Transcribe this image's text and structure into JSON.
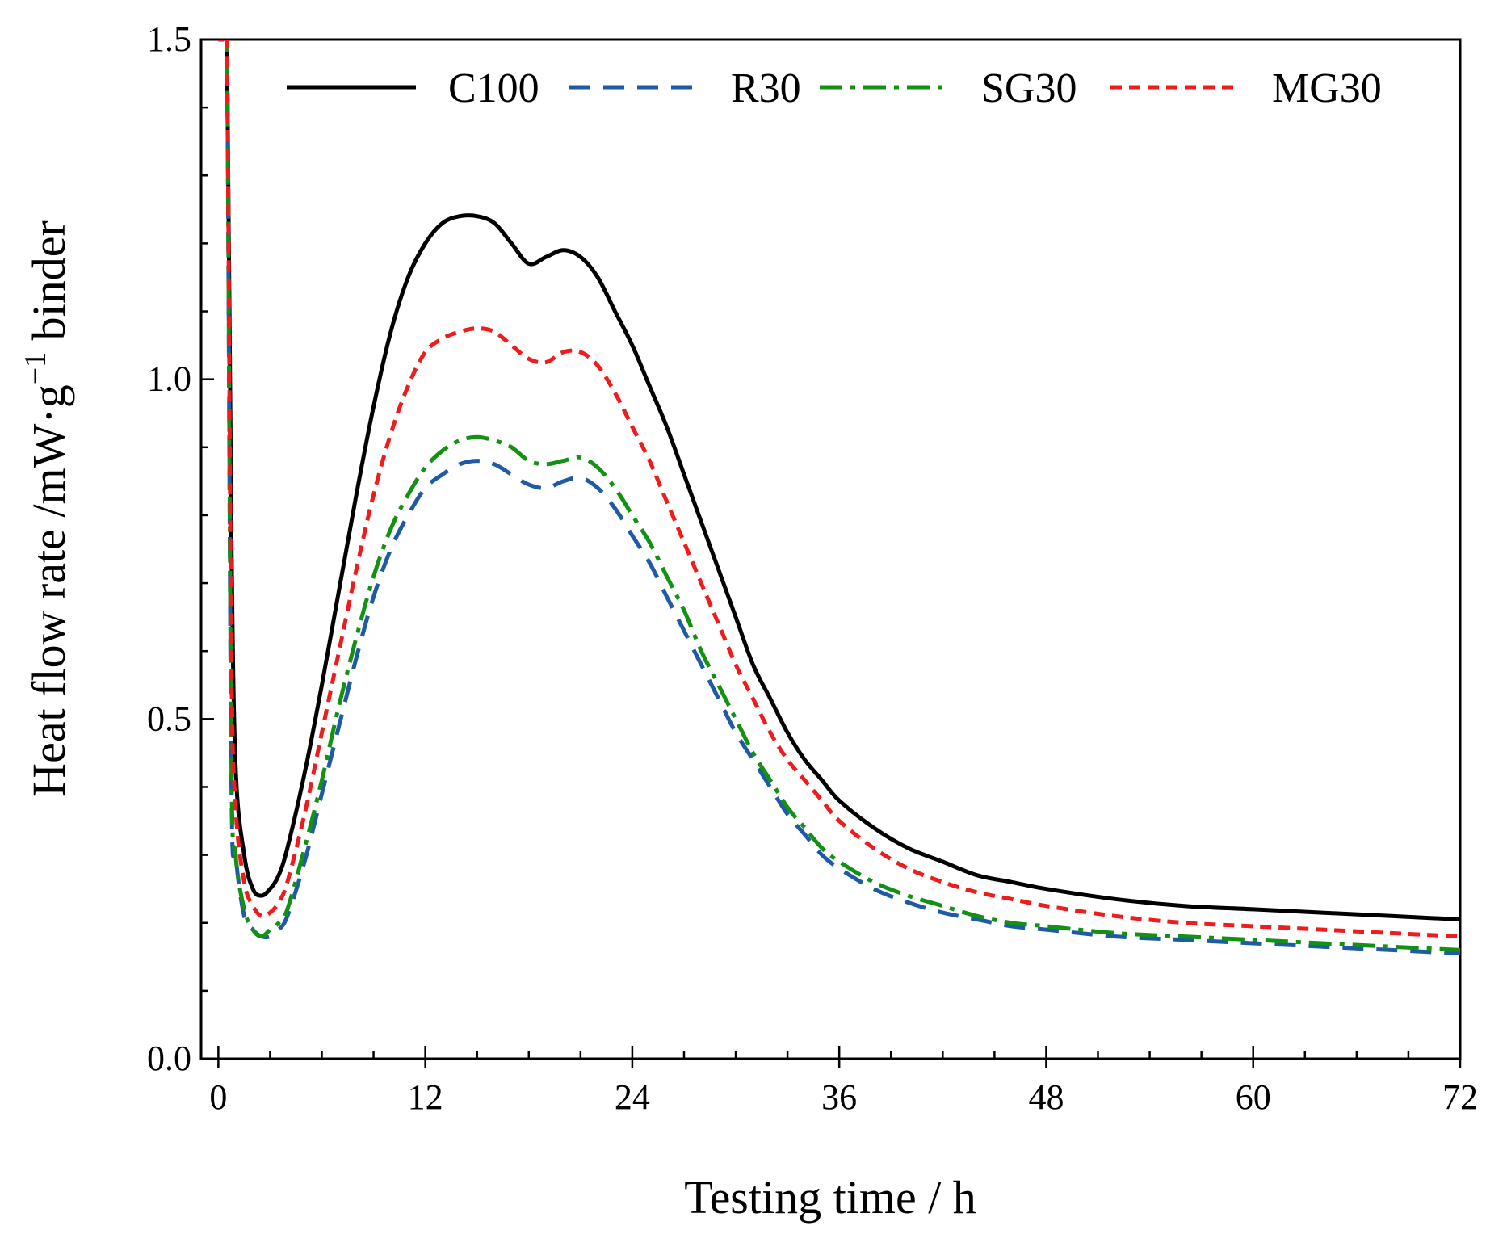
{
  "chart_data": {
    "type": "line",
    "title": "",
    "xlabel": "Testing time / h",
    "ylabel": {
      "prefix": "Heat flow rate /mW·g",
      "superscript": "−1",
      "suffix": " binder"
    },
    "xlim": [
      -1,
      72
    ],
    "ylim": [
      0,
      1.5
    ],
    "xticks": [
      0,
      12,
      24,
      36,
      48,
      60,
      72
    ],
    "xtick_labels": [
      "0",
      "12",
      "24",
      "36",
      "48",
      "60",
      "72"
    ],
    "yticks": [
      0.0,
      0.5,
      1.0,
      1.5
    ],
    "ytick_labels": [
      "0.0",
      "0.5",
      "1.0",
      "1.5"
    ],
    "grid": false,
    "legend_position": "top, single row",
    "series": [
      {
        "name": "C100",
        "color": "#000000",
        "dash": "solid",
        "x": [
          0,
          0.25,
          0.5,
          0.75,
          1,
          1.5,
          2,
          2.5,
          3,
          3.5,
          4,
          5,
          6,
          7,
          8,
          9,
          10,
          11,
          12,
          13,
          14,
          15,
          16,
          17,
          18,
          19,
          20,
          21,
          22,
          23,
          24,
          25,
          26,
          27,
          28,
          29,
          30,
          31,
          32,
          33,
          34,
          35,
          36,
          38,
          40,
          42,
          44,
          46,
          48,
          52,
          56,
          60,
          64,
          68,
          72
        ],
        "y": [
          1.5,
          1.5,
          1.5,
          0.78,
          0.43,
          0.3,
          0.25,
          0.24,
          0.25,
          0.27,
          0.31,
          0.42,
          0.55,
          0.69,
          0.83,
          0.96,
          1.07,
          1.15,
          1.2,
          1.23,
          1.24,
          1.24,
          1.23,
          1.2,
          1.17,
          1.18,
          1.19,
          1.18,
          1.15,
          1.1,
          1.05,
          0.99,
          0.93,
          0.86,
          0.79,
          0.72,
          0.65,
          0.58,
          0.53,
          0.48,
          0.44,
          0.41,
          0.38,
          0.34,
          0.31,
          0.29,
          0.27,
          0.26,
          0.25,
          0.235,
          0.225,
          0.22,
          0.215,
          0.21,
          0.205
        ]
      },
      {
        "name": "R30",
        "color": "#1f5aa6",
        "dash": "26,16",
        "x": [
          0,
          0.25,
          0.5,
          0.75,
          1,
          1.5,
          2,
          2.5,
          3,
          3.5,
          4,
          5,
          6,
          7,
          8,
          9,
          10,
          11,
          12,
          13,
          14,
          15,
          16,
          17,
          18,
          19,
          20,
          21,
          22,
          23,
          24,
          25,
          26,
          27,
          28,
          29,
          30,
          31,
          32,
          33,
          34,
          35,
          36,
          38,
          40,
          42,
          44,
          46,
          48,
          52,
          56,
          60,
          64,
          68,
          72
        ],
        "y": [
          1.5,
          1.5,
          1.5,
          0.42,
          0.3,
          0.21,
          0.19,
          0.18,
          0.18,
          0.19,
          0.21,
          0.29,
          0.39,
          0.49,
          0.59,
          0.68,
          0.75,
          0.8,
          0.84,
          0.86,
          0.875,
          0.88,
          0.875,
          0.86,
          0.845,
          0.84,
          0.85,
          0.855,
          0.84,
          0.81,
          0.77,
          0.73,
          0.68,
          0.63,
          0.58,
          0.53,
          0.48,
          0.44,
          0.4,
          0.36,
          0.33,
          0.3,
          0.28,
          0.25,
          0.23,
          0.215,
          0.205,
          0.195,
          0.19,
          0.18,
          0.175,
          0.17,
          0.165,
          0.16,
          0.155
        ]
      },
      {
        "name": "SG30",
        "color": "#139113",
        "dash": "28,10,6,10",
        "x": [
          0,
          0.25,
          0.5,
          0.75,
          1,
          1.5,
          2,
          2.5,
          3,
          3.5,
          4,
          5,
          6,
          7,
          8,
          9,
          10,
          11,
          12,
          13,
          14,
          15,
          16,
          17,
          18,
          19,
          20,
          21,
          22,
          23,
          24,
          25,
          26,
          27,
          28,
          29,
          30,
          31,
          32,
          33,
          34,
          35,
          36,
          38,
          40,
          42,
          44,
          46,
          48,
          52,
          56,
          60,
          64,
          68,
          72
        ],
        "y": [
          1.5,
          1.5,
          1.5,
          0.45,
          0.3,
          0.22,
          0.19,
          0.18,
          0.19,
          0.2,
          0.22,
          0.31,
          0.41,
          0.52,
          0.62,
          0.71,
          0.78,
          0.83,
          0.87,
          0.895,
          0.91,
          0.915,
          0.91,
          0.9,
          0.88,
          0.875,
          0.88,
          0.885,
          0.87,
          0.84,
          0.8,
          0.76,
          0.71,
          0.66,
          0.6,
          0.55,
          0.5,
          0.45,
          0.41,
          0.37,
          0.34,
          0.31,
          0.29,
          0.26,
          0.24,
          0.225,
          0.21,
          0.2,
          0.195,
          0.185,
          0.18,
          0.175,
          0.17,
          0.165,
          0.16
        ]
      },
      {
        "name": "MG30",
        "color": "#ee1c1c",
        "dash": "14,9",
        "x": [
          0,
          0.25,
          0.5,
          0.75,
          1,
          1.5,
          2,
          2.5,
          3,
          3.5,
          4,
          5,
          6,
          7,
          8,
          9,
          10,
          11,
          12,
          13,
          14,
          15,
          16,
          17,
          18,
          19,
          20,
          21,
          22,
          23,
          24,
          25,
          26,
          27,
          28,
          29,
          30,
          31,
          32,
          33,
          34,
          35,
          36,
          38,
          40,
          42,
          44,
          46,
          48,
          52,
          56,
          60,
          64,
          68,
          72
        ],
        "y": [
          1.5,
          1.5,
          1.5,
          0.6,
          0.37,
          0.26,
          0.225,
          0.21,
          0.215,
          0.23,
          0.26,
          0.36,
          0.48,
          0.6,
          0.72,
          0.83,
          0.92,
          0.99,
          1.04,
          1.06,
          1.07,
          1.075,
          1.07,
          1.05,
          1.03,
          1.025,
          1.04,
          1.04,
          1.02,
          0.98,
          0.93,
          0.88,
          0.82,
          0.76,
          0.7,
          0.64,
          0.58,
          0.53,
          0.48,
          0.44,
          0.41,
          0.38,
          0.35,
          0.31,
          0.28,
          0.26,
          0.245,
          0.235,
          0.225,
          0.21,
          0.2,
          0.195,
          0.19,
          0.185,
          0.18
        ]
      }
    ]
  }
}
